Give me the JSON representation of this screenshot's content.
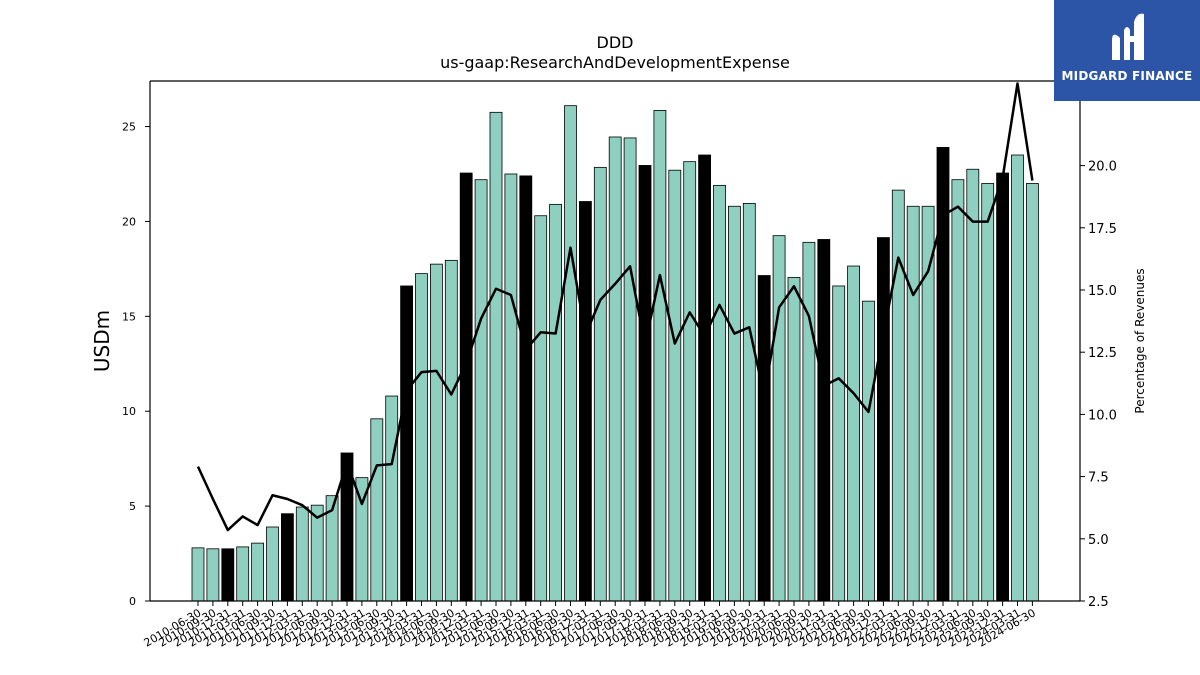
{
  "chart_data": {
    "type": "bar",
    "title": "DDD",
    "subtitle": "us-gaap:ResearchAndDevelopmentExpense",
    "ylabel": "USDm",
    "y2label": "Percentage of Revenues",
    "ylim": [
      0,
      27.4
    ],
    "y2lim": [
      2.5,
      23.4
    ],
    "yticks": [
      0,
      5,
      10,
      15,
      20,
      25
    ],
    "y2ticks": [
      "2.5",
      "5.0",
      "7.5",
      "10.0",
      "12.5",
      "15.0",
      "17.5",
      "20.0"
    ],
    "categories": [
      "2010-06-30",
      "2010-09-30",
      "2010-12-31",
      "2011-03-31",
      "2011-06-30",
      "2011-09-30",
      "2011-12-31",
      "2012-03-31",
      "2012-06-30",
      "2012-09-30",
      "2012-12-31",
      "2013-03-31",
      "2013-06-30",
      "2013-09-30",
      "2013-12-31",
      "2014-03-31",
      "2014-06-30",
      "2014-09-30",
      "2014-12-31",
      "2015-03-31",
      "2015-06-30",
      "2015-09-30",
      "2015-12-31",
      "2016-03-31",
      "2016-06-30",
      "2016-09-30",
      "2016-12-31",
      "2017-03-31",
      "2017-06-30",
      "2017-09-30",
      "2017-12-31",
      "2018-03-31",
      "2018-06-30",
      "2018-09-30",
      "2018-12-31",
      "2019-03-31",
      "2019-06-30",
      "2019-09-30",
      "2019-12-31",
      "2020-03-31",
      "2020-06-30",
      "2020-09-30",
      "2020-12-31",
      "2021-03-31",
      "2021-06-30",
      "2021-09-30",
      "2021-12-31",
      "2022-03-31",
      "2022-06-30",
      "2022-09-30",
      "2022-12-31",
      "2023-03-31",
      "2023-06-30",
      "2023-09-30",
      "2023-12-31",
      "2024-03-31",
      "2024-06-30"
    ],
    "series": [
      {
        "type": "bar",
        "axis": "left",
        "values": [
          2.8,
          2.75,
          2.75,
          2.85,
          3.05,
          3.9,
          4.6,
          4.95,
          5.05,
          5.55,
          7.8,
          6.5,
          9.6,
          10.8,
          16.6,
          17.25,
          17.75,
          17.95,
          22.55,
          22.2,
          25.75,
          22.5,
          22.4,
          20.3,
          20.9,
          26.1,
          21.05,
          22.85,
          24.45,
          24.4,
          22.95,
          25.85,
          22.7,
          23.15,
          23.5,
          21.9,
          20.8,
          20.95,
          17.15,
          19.25,
          17.05,
          18.9,
          19.05,
          16.6,
          17.65,
          15.8,
          19.15,
          21.65,
          20.8,
          20.8,
          23.9,
          22.2,
          22.75,
          22.0,
          22.55,
          23.5,
          22.0
        ]
      },
      {
        "type": "line",
        "axis": "right",
        "values": [
          7.9,
          6.6,
          5.35,
          5.9,
          5.55,
          6.75,
          6.6,
          6.35,
          5.85,
          6.15,
          8.05,
          6.4,
          7.95,
          8.0,
          10.95,
          11.7,
          11.75,
          10.8,
          12.05,
          13.85,
          15.05,
          14.8,
          12.6,
          13.3,
          13.25,
          16.7,
          13.2,
          14.6,
          15.25,
          15.95,
          12.8,
          15.6,
          12.85,
          14.1,
          13.15,
          14.4,
          13.25,
          13.5,
          10.75,
          14.3,
          15.15,
          13.95,
          11.15,
          11.45,
          10.85,
          10.1,
          13.25,
          16.3,
          14.8,
          15.75,
          18.0,
          18.35,
          17.75,
          17.75,
          19.5,
          23.3,
          19.4
        ]
      }
    ],
    "highlight_every": 4,
    "highlight_offset": 2
  },
  "colors": {
    "bar_fill": "#8ecfc0",
    "bar_highlight": "#000000",
    "bar_edge": "#000000",
    "line": "#000000",
    "logo_bg": "#2d55a7"
  },
  "logo": {
    "text": "MIDGARD FINANCE",
    "icon": "midgard-logo-mark"
  }
}
